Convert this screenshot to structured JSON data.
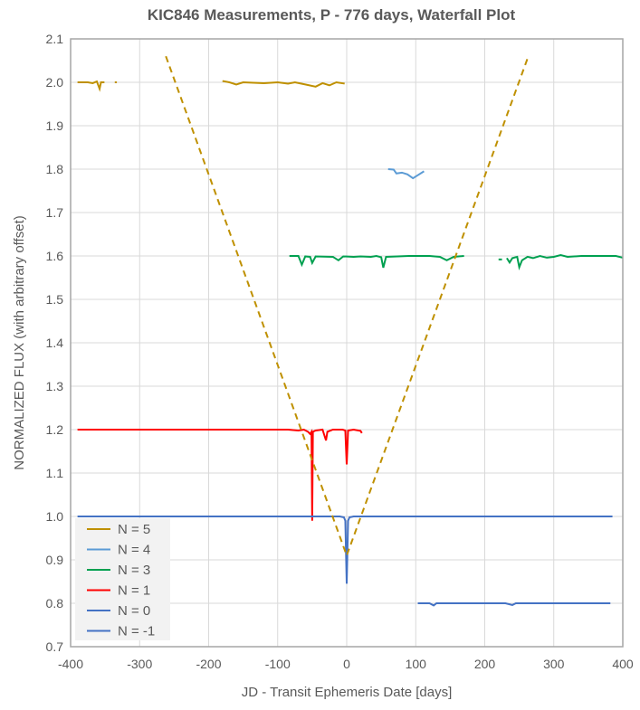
{
  "chart_data": {
    "type": "line",
    "title": "KIC846 Measurements, P - 776 days, Waterfall Plot",
    "xlabel": "JD - Transit Ephemeris Date [days]",
    "ylabel": "NORMALIZED FLUX (with arbitrary offset)",
    "xlim": [
      -400,
      400
    ],
    "ylim": [
      0.7,
      2.1
    ],
    "xticks": [
      -400,
      -300,
      -200,
      -100,
      0,
      100,
      200,
      300,
      400
    ],
    "yticks": [
      "0.7",
      "0.8",
      "0.9",
      "1.0",
      "1.1",
      "1.2",
      "1.3",
      "1.4",
      "1.5",
      "1.6",
      "1.7",
      "1.8",
      "1.9",
      "2.0",
      "2.1"
    ],
    "grid": true,
    "legend_position": "bottom-left",
    "series": [
      {
        "name": "N = 5",
        "color": "#bf9000",
        "points": [
          [
            -390,
            2.0
          ],
          [
            -375,
            2.0
          ],
          [
            -368,
            1.998
          ],
          [
            -362,
            2.002
          ],
          [
            -358,
            1.985
          ],
          [
            -356,
            2.0
          ],
          [
            -351,
            2.0
          ],
          null,
          [
            -336,
            2.0
          ],
          [
            -333,
            2.0
          ],
          null,
          [
            -180,
            2.003
          ],
          [
            -170,
            2.0
          ],
          [
            -160,
            1.995
          ],
          [
            -150,
            2.0
          ],
          [
            -120,
            1.998
          ],
          [
            -100,
            2.0
          ],
          [
            -85,
            1.997
          ],
          [
            -75,
            2.0
          ],
          [
            -60,
            1.995
          ],
          [
            -45,
            1.99
          ],
          [
            -35,
            1.998
          ],
          [
            -25,
            1.993
          ],
          [
            -15,
            2.0
          ],
          [
            -3,
            1.997
          ]
        ]
      },
      {
        "name": "N = 4",
        "color": "#5b9bd5",
        "points": [
          [
            60,
            1.8
          ],
          [
            68,
            1.799
          ],
          [
            72,
            1.79
          ],
          [
            80,
            1.792
          ],
          [
            88,
            1.788
          ],
          [
            96,
            1.779
          ],
          [
            102,
            1.785
          ],
          [
            112,
            1.795
          ]
        ]
      },
      {
        "name": "N = 3",
        "color": "#00a050",
        "points": [
          [
            -83,
            1.6
          ],
          [
            -70,
            1.6
          ],
          [
            -65,
            1.58
          ],
          [
            -60,
            1.599
          ],
          [
            -53,
            1.598
          ],
          [
            -50,
            1.584
          ],
          [
            -45,
            1.599
          ],
          [
            -20,
            1.598
          ],
          [
            -12,
            1.59
          ],
          [
            -5,
            1.599
          ],
          [
            10,
            1.598
          ],
          [
            20,
            1.599
          ],
          [
            35,
            1.598
          ],
          [
            43,
            1.6
          ],
          [
            50,
            1.597
          ],
          [
            53,
            1.573
          ],
          [
            57,
            1.598
          ],
          [
            90,
            1.6
          ],
          [
            120,
            1.6
          ],
          [
            135,
            1.598
          ],
          [
            145,
            1.59
          ],
          [
            155,
            1.598
          ],
          [
            170,
            1.6
          ],
          null,
          [
            220,
            1.592
          ],
          [
            225,
            1.592
          ],
          null,
          [
            232,
            1.595
          ],
          [
            236,
            1.585
          ],
          [
            240,
            1.595
          ],
          [
            247,
            1.598
          ],
          [
            250,
            1.574
          ],
          [
            254,
            1.59
          ],
          [
            262,
            1.598
          ],
          [
            270,
            1.595
          ],
          [
            280,
            1.6
          ],
          [
            290,
            1.596
          ],
          [
            300,
            1.598
          ],
          [
            310,
            1.602
          ],
          [
            320,
            1.598
          ],
          [
            340,
            1.6
          ],
          [
            370,
            1.6
          ],
          [
            390,
            1.6
          ],
          [
            400,
            1.596
          ]
        ]
      },
      {
        "name": "N = 1",
        "color": "#ff0000",
        "points": [
          [
            -390,
            1.2
          ],
          [
            -300,
            1.2
          ],
          [
            -200,
            1.2
          ],
          [
            -120,
            1.2
          ],
          [
            -85,
            1.2
          ],
          [
            -70,
            1.198
          ],
          [
            -62,
            1.2
          ],
          [
            -56,
            1.195
          ],
          [
            -53,
            1.19
          ],
          [
            -51,
            1.195
          ],
          [
            -50,
            0.99
          ],
          [
            -49,
            1.195
          ],
          [
            -45,
            1.198
          ],
          [
            -35,
            1.2
          ],
          [
            -30,
            1.175
          ],
          [
            -28,
            1.195
          ],
          [
            -20,
            1.2
          ],
          [
            -6,
            1.2
          ],
          [
            -2,
            1.198
          ],
          [
            0,
            1.12
          ],
          [
            2,
            1.198
          ],
          [
            10,
            1.2
          ],
          [
            20,
            1.197
          ],
          [
            22,
            1.192
          ]
        ]
      },
      {
        "name": "N = 0",
        "color": "#4472c4",
        "points": [
          [
            -390,
            1.0
          ],
          [
            -200,
            1.0
          ],
          [
            -50,
            1.0
          ],
          [
            -10,
            1.0
          ],
          [
            -4,
            0.998
          ],
          [
            -2,
            0.99
          ],
          [
            0,
            0.845
          ],
          [
            2,
            0.99
          ],
          [
            4,
            0.998
          ],
          [
            10,
            1.0
          ],
          [
            200,
            1.0
          ],
          [
            385,
            1.0
          ]
        ]
      },
      {
        "name": "N = -1",
        "color": "#4472c4",
        "points": [
          [
            103,
            0.8
          ],
          [
            120,
            0.8
          ],
          [
            126,
            0.795
          ],
          [
            130,
            0.8
          ],
          [
            230,
            0.8
          ],
          [
            240,
            0.796
          ],
          [
            245,
            0.8
          ],
          [
            320,
            0.8
          ],
          [
            382,
            0.8
          ]
        ]
      }
    ],
    "envelope": {
      "color": "#bf9000",
      "style": "dashed",
      "points": [
        [
          -262,
          2.06
        ],
        [
          0,
          0.91
        ],
        [
          262,
          2.055
        ]
      ]
    }
  }
}
